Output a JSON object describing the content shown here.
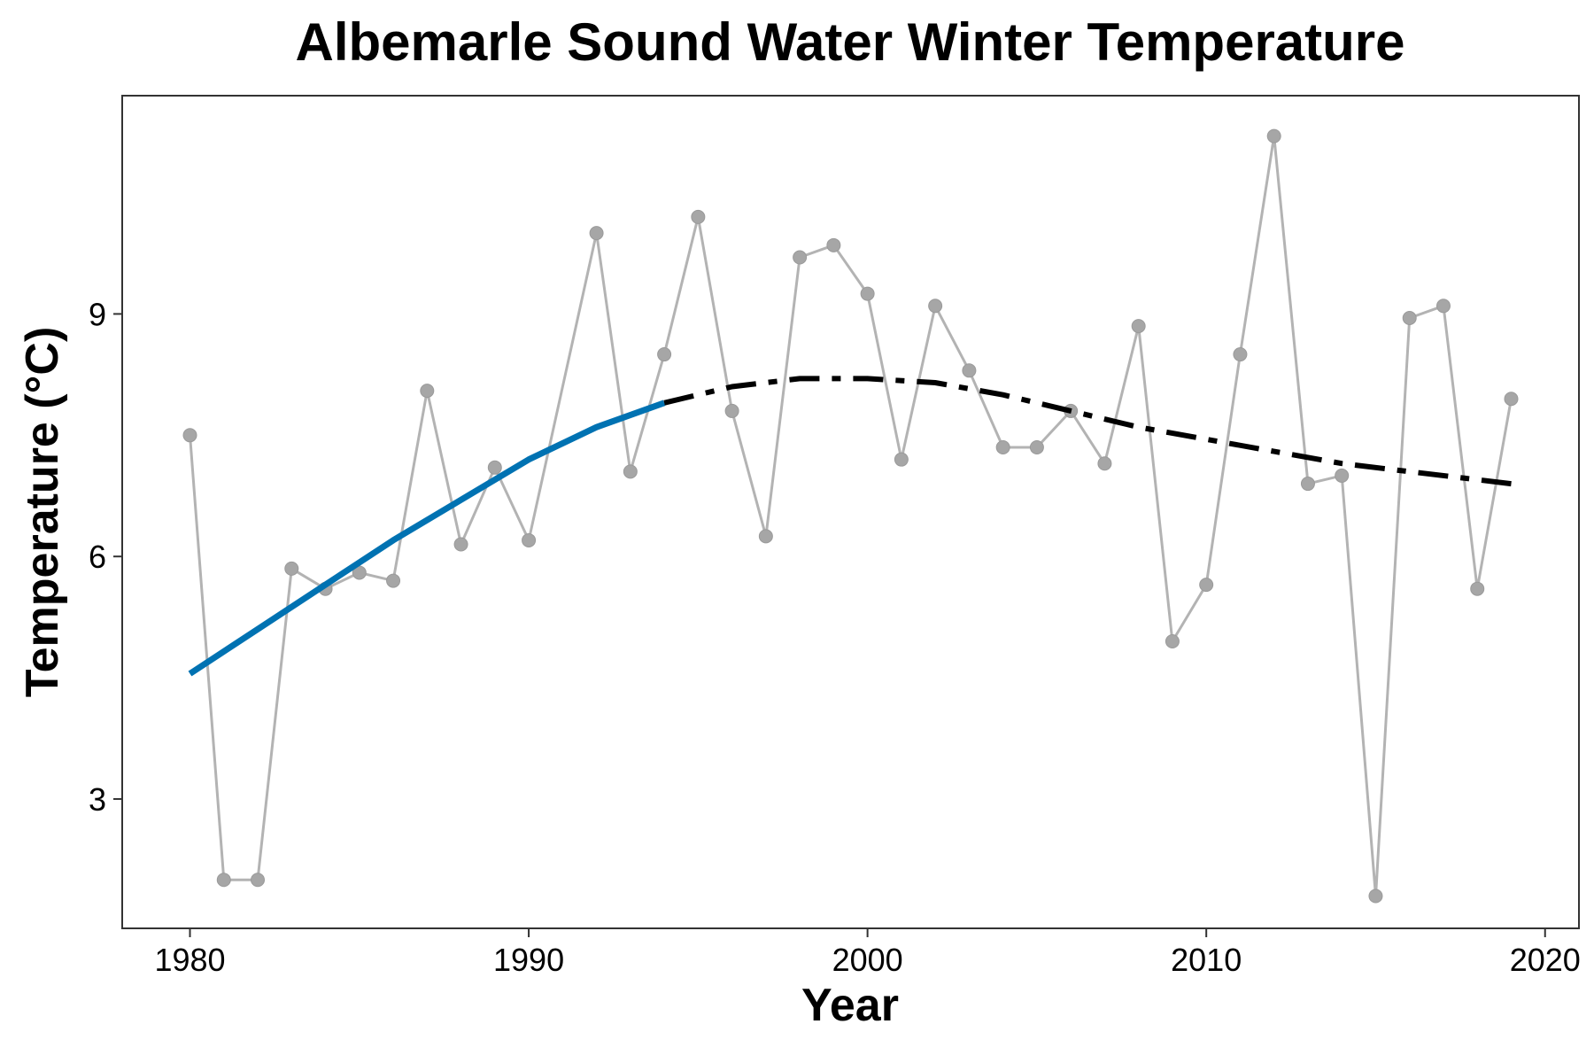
{
  "chart_data": {
    "type": "line",
    "title": "Albemarle Sound Water Winter Temperature",
    "xlabel": "Year",
    "ylabel": "Temperature (°C)",
    "xlim": [
      1978,
      2021
    ],
    "ylim": [
      1.4,
      11.7
    ],
    "x_ticks": [
      1980,
      1990,
      2000,
      2010,
      2020
    ],
    "y_ticks": [
      3,
      6,
      9
    ],
    "grid": false,
    "legend": "none",
    "series": [
      {
        "style": "observed",
        "color": "#b3b3b3",
        "x": [
          1980,
          1981,
          1982,
          1983,
          1984,
          1985,
          1986,
          1987,
          1988,
          1989,
          1990,
          1992,
          1993,
          1994,
          1995,
          1996,
          1997,
          1998,
          1999,
          2000,
          2001,
          2002,
          2003,
          2004,
          2005,
          2006,
          2007,
          2008,
          2009,
          2010,
          2011,
          2012,
          2013,
          2014,
          2015,
          2016,
          2017,
          2018,
          2019
        ],
        "y": [
          7.5,
          2.0,
          2.0,
          5.85,
          5.6,
          5.8,
          5.7,
          8.05,
          6.15,
          7.1,
          6.2,
          10.0,
          7.05,
          8.5,
          10.2,
          7.8,
          6.25,
          9.7,
          9.85,
          9.25,
          7.2,
          9.1,
          8.3,
          7.35,
          7.35,
          7.8,
          7.15,
          8.85,
          4.95,
          5.65,
          8.5,
          11.2,
          6.9,
          7.0,
          1.8,
          8.95,
          9.1,
          5.6,
          7.95
        ]
      },
      {
        "style": "trend-solid",
        "color": "#0072b2",
        "x": [
          1980,
          1982,
          1984,
          1986,
          1988,
          1990,
          1992,
          1994
        ],
        "y": [
          4.55,
          5.1,
          5.65,
          6.2,
          6.7,
          7.2,
          7.6,
          7.9
        ]
      },
      {
        "style": "trend-dashdot",
        "color": "#000000",
        "x": [
          1994,
          1996,
          1998,
          2000,
          2002,
          2004,
          2006,
          2008,
          2010,
          2012,
          2014,
          2016,
          2018,
          2019
        ],
        "y": [
          7.9,
          8.1,
          8.2,
          8.2,
          8.15,
          8.0,
          7.8,
          7.6,
          7.45,
          7.3,
          7.15,
          7.05,
          6.95,
          6.9
        ]
      }
    ]
  }
}
